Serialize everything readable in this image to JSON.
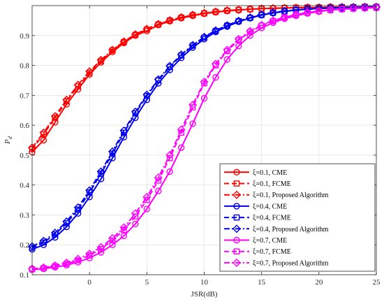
{
  "chart_data": {
    "type": "line",
    "xlabel": "JSR(dB)",
    "ylabel_main": "P",
    "ylabel_sub": "d",
    "xlim": [
      -5,
      25
    ],
    "ylim": [
      0.1,
      1.0
    ],
    "xticks": [
      "0",
      "5",
      "10",
      "15",
      "20",
      "25"
    ],
    "xtick_values": [
      0,
      5,
      10,
      15,
      20,
      25
    ],
    "yticks": [
      "0.1",
      "0.2",
      "0.3",
      "0.4",
      "0.5",
      "0.6",
      "0.7",
      "0.8",
      "0.9"
    ],
    "ytick_values": [
      0.1,
      0.2,
      0.3,
      0.4,
      0.5,
      0.6,
      0.7,
      0.8,
      0.9
    ],
    "grid": true,
    "legend_position": "bottom-right",
    "x": [
      -5,
      -4,
      -3,
      -2,
      -1,
      0,
      1,
      2,
      3,
      4,
      5,
      6,
      7,
      8,
      9,
      10,
      11,
      12,
      13,
      14,
      15,
      16,
      17,
      18,
      19,
      20,
      21,
      22,
      23,
      24,
      25
    ],
    "series": [
      {
        "name": "ξ=0.1, CME",
        "color": "#ff0000",
        "line_style": "solid",
        "marker": "circle",
        "values": [
          0.51,
          0.55,
          0.61,
          0.67,
          0.72,
          0.77,
          0.81,
          0.845,
          0.875,
          0.9,
          0.915,
          0.935,
          0.948,
          0.958,
          0.966,
          0.973,
          0.978,
          0.982,
          0.985,
          0.988,
          0.99,
          0.991,
          0.992,
          0.993,
          0.994,
          0.994,
          0.995,
          0.995,
          0.995,
          0.996,
          0.996
        ]
      },
      {
        "name": "ξ=0.1, FCME",
        "color": "#ff0000",
        "line_style": "dashed",
        "marker": "square",
        "values": [
          0.52,
          0.57,
          0.625,
          0.68,
          0.73,
          0.775,
          0.815,
          0.85,
          0.878,
          0.902,
          0.92,
          0.937,
          0.95,
          0.96,
          0.968,
          0.974,
          0.979,
          0.983,
          0.986,
          0.988,
          0.99,
          0.991,
          0.992,
          0.993,
          0.994,
          0.994,
          0.995,
          0.995,
          0.995,
          0.996,
          0.996
        ]
      },
      {
        "name": "ξ=0.1, Proposed Algorithm",
        "color": "#ff0000",
        "line_style": "dashdot",
        "marker": "diamond",
        "values": [
          0.525,
          0.575,
          0.63,
          0.685,
          0.735,
          0.78,
          0.818,
          0.852,
          0.88,
          0.904,
          0.922,
          0.938,
          0.951,
          0.961,
          0.969,
          0.975,
          0.98,
          0.984,
          0.986,
          0.988,
          0.99,
          0.991,
          0.992,
          0.993,
          0.994,
          0.994,
          0.995,
          0.995,
          0.995,
          0.996,
          0.996
        ]
      },
      {
        "name": "ξ=0.4, CME",
        "color": "#0000ee",
        "line_style": "solid",
        "marker": "circle",
        "values": [
          0.185,
          0.2,
          0.225,
          0.26,
          0.305,
          0.36,
          0.42,
          0.49,
          0.56,
          0.625,
          0.685,
          0.74,
          0.785,
          0.825,
          0.86,
          0.888,
          0.912,
          0.93,
          0.946,
          0.958,
          0.968,
          0.975,
          0.98,
          0.985,
          0.988,
          0.99,
          0.992,
          0.993,
          0.994,
          0.995,
          0.995
        ]
      },
      {
        "name": "ξ=0.4, FCME",
        "color": "#0000ee",
        "line_style": "dashed",
        "marker": "square",
        "values": [
          0.19,
          0.208,
          0.235,
          0.272,
          0.318,
          0.375,
          0.438,
          0.505,
          0.575,
          0.64,
          0.698,
          0.75,
          0.795,
          0.833,
          0.866,
          0.893,
          0.915,
          0.933,
          0.948,
          0.959,
          0.969,
          0.976,
          0.981,
          0.985,
          0.988,
          0.99,
          0.992,
          0.993,
          0.994,
          0.995,
          0.995
        ]
      },
      {
        "name": "ξ=0.4, Proposed Algorithm",
        "color": "#0000ee",
        "line_style": "dashdot",
        "marker": "diamond",
        "values": [
          0.195,
          0.213,
          0.24,
          0.278,
          0.325,
          0.382,
          0.445,
          0.512,
          0.582,
          0.645,
          0.702,
          0.753,
          0.798,
          0.836,
          0.868,
          0.895,
          0.917,
          0.934,
          0.949,
          0.96,
          0.97,
          0.977,
          0.982,
          0.986,
          0.989,
          0.991,
          0.992,
          0.993,
          0.994,
          0.995,
          0.995
        ]
      },
      {
        "name": "ξ=0.7, CME",
        "color": "#ff00ff",
        "line_style": "solid",
        "marker": "circle",
        "values": [
          0.117,
          0.12,
          0.125,
          0.132,
          0.142,
          0.156,
          0.175,
          0.2,
          0.23,
          0.27,
          0.32,
          0.38,
          0.445,
          0.525,
          0.605,
          0.69,
          0.76,
          0.82,
          0.865,
          0.9,
          0.925,
          0.943,
          0.956,
          0.966,
          0.974,
          0.98,
          0.985,
          0.988,
          0.99,
          0.992,
          0.993
        ]
      },
      {
        "name": "ξ=0.7, FCME",
        "color": "#ff00ff",
        "line_style": "dashed",
        "marker": "square",
        "values": [
          0.118,
          0.122,
          0.128,
          0.136,
          0.148,
          0.165,
          0.186,
          0.215,
          0.25,
          0.295,
          0.35,
          0.415,
          0.49,
          0.575,
          0.66,
          0.74,
          0.8,
          0.848,
          0.885,
          0.912,
          0.933,
          0.948,
          0.96,
          0.969,
          0.976,
          0.981,
          0.985,
          0.988,
          0.99,
          0.992,
          0.993
        ]
      },
      {
        "name": "ξ=0.7, Proposed Algorithm",
        "color": "#ff00ff",
        "line_style": "dashdot",
        "marker": "diamond",
        "values": [
          0.12,
          0.124,
          0.131,
          0.14,
          0.153,
          0.17,
          0.192,
          0.222,
          0.258,
          0.305,
          0.36,
          0.425,
          0.5,
          0.585,
          0.668,
          0.745,
          0.805,
          0.852,
          0.888,
          0.915,
          0.935,
          0.95,
          0.961,
          0.97,
          0.977,
          0.982,
          0.986,
          0.989,
          0.991,
          0.992,
          0.993
        ]
      }
    ]
  }
}
